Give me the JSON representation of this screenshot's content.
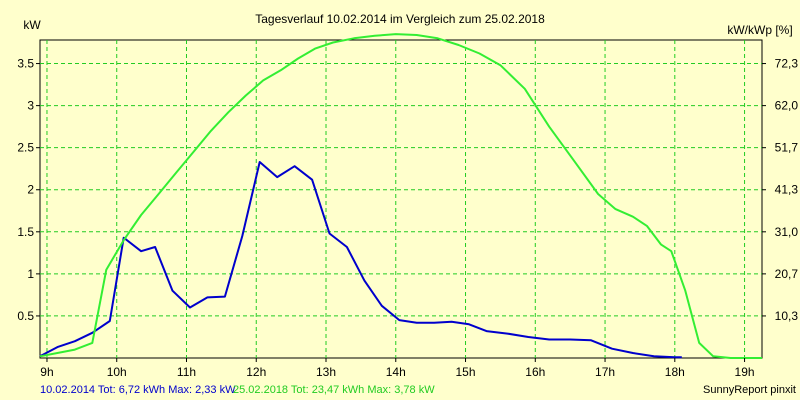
{
  "chart_data": {
    "type": "line",
    "title": "Tagesverlauf 10.02.2014 im Vergleich zum 25.02.2018",
    "ylabel_left": "kW",
    "ylabel_right": "kW/kWp [%]",
    "xlim": [
      8.9,
      19.25
    ],
    "ylim": [
      0,
      3.78
    ],
    "x_ticks": [
      9,
      10,
      11,
      12,
      13,
      14,
      15,
      16,
      17,
      18,
      19
    ],
    "x_tick_labels": [
      "9h",
      "10h",
      "11h",
      "12h",
      "13h",
      "14h",
      "15h",
      "16h",
      "17h",
      "18h",
      "19h"
    ],
    "y_ticks": [
      0.5,
      1,
      1.5,
      2,
      2.5,
      3,
      3.5
    ],
    "y_tick_labels": [
      "0.5",
      "1",
      "1.5",
      "2",
      "2.5",
      "3",
      "3.5"
    ],
    "y_right_tick_labels": [
      "10,3",
      "20,7",
      "31,0",
      "41,3",
      "51,7",
      "62,0",
      "72,3"
    ],
    "grid": true,
    "series": [
      {
        "name": "10.02.2014",
        "color": "#0000cc",
        "x": [
          8.9,
          9.15,
          9.4,
          9.65,
          9.9,
          10.1,
          10.35,
          10.55,
          10.8,
          11.05,
          11.3,
          11.55,
          11.8,
          12.05,
          12.3,
          12.55,
          12.8,
          13.05,
          13.3,
          13.55,
          13.8,
          14.05,
          14.3,
          14.55,
          14.8,
          15.05,
          15.3,
          15.6,
          15.9,
          16.2,
          16.5,
          16.8,
          17.1,
          17.4,
          17.7,
          18.0,
          18.1
        ],
        "values": [
          0.02,
          0.13,
          0.2,
          0.3,
          0.44,
          1.43,
          1.27,
          1.32,
          0.8,
          0.6,
          0.72,
          0.73,
          1.45,
          2.33,
          2.15,
          2.28,
          2.12,
          1.48,
          1.32,
          0.92,
          0.62,
          0.45,
          0.42,
          0.42,
          0.43,
          0.4,
          0.32,
          0.29,
          0.25,
          0.22,
          0.22,
          0.21,
          0.11,
          0.06,
          0.02,
          0.01,
          0.01
        ]
      },
      {
        "name": "25.02.2018",
        "color": "#33ee33",
        "x": [
          8.9,
          9.15,
          9.4,
          9.65,
          9.85,
          10.1,
          10.35,
          10.6,
          10.85,
          11.1,
          11.35,
          11.6,
          11.85,
          12.1,
          12.35,
          12.6,
          12.85,
          13.1,
          13.4,
          13.7,
          14.0,
          14.3,
          14.6,
          14.9,
          15.2,
          15.5,
          15.85,
          16.2,
          16.55,
          16.9,
          17.15,
          17.4,
          17.6,
          17.8,
          17.95,
          18.15,
          18.35,
          18.55,
          18.8,
          19.1,
          19.25
        ],
        "values": [
          0.02,
          0.06,
          0.1,
          0.18,
          1.05,
          1.4,
          1.7,
          1.95,
          2.2,
          2.45,
          2.7,
          2.92,
          3.12,
          3.3,
          3.42,
          3.56,
          3.68,
          3.75,
          3.8,
          3.83,
          3.85,
          3.84,
          3.8,
          3.72,
          3.62,
          3.48,
          3.2,
          2.75,
          2.35,
          1.95,
          1.77,
          1.68,
          1.57,
          1.35,
          1.27,
          0.8,
          0.18,
          0.02,
          0.0,
          0.0,
          0.0
        ]
      }
    ]
  },
  "footer": {
    "series1_text": "10.02.2014 Tot: 6,72 kWh Max: 2,33 kW",
    "series2_text": "25.02.2018 Tot: 23,47 kWh Max: 3,78 kW",
    "credit": "SunnyReport pinxit"
  }
}
